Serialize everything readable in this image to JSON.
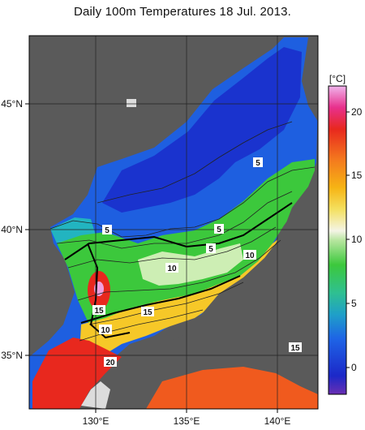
{
  "title": "Daily 100m Temperatures 18 Jul. 2013.",
  "axes": {
    "x_ticks": [
      "130°E",
      "135°E",
      "140°E"
    ],
    "y_ticks": [
      "45°N",
      "40°N",
      "35°N"
    ]
  },
  "colorbar": {
    "unit_label": "[°C]",
    "ticks": [
      "20",
      "15",
      "10",
      "5",
      "0"
    ],
    "range": [
      -2,
      22
    ]
  },
  "contour_labels": [
    {
      "name": "contour-label-5-east",
      "text": "5"
    },
    {
      "name": "contour-label-5-west",
      "text": "5"
    },
    {
      "name": "contour-label-5-central",
      "text": "5"
    },
    {
      "name": "contour-label-5-center-south",
      "text": "5"
    },
    {
      "name": "contour-label-10-central",
      "text": "10"
    },
    {
      "name": "contour-label-10-east",
      "text": "10"
    },
    {
      "name": "contour-label-15-west",
      "text": "15"
    },
    {
      "name": "contour-label-15-central",
      "text": "15"
    },
    {
      "name": "contour-label-10-southwest",
      "text": "10"
    },
    {
      "name": "contour-label-20-south",
      "text": "20"
    },
    {
      "name": "contour-label-15-southeast",
      "text": "15"
    }
  ],
  "colors": {
    "land": "#5a5a5a",
    "no_data": "#dcdcdc",
    "cold": "#1a3fd0",
    "warm": "#e8281e"
  }
}
